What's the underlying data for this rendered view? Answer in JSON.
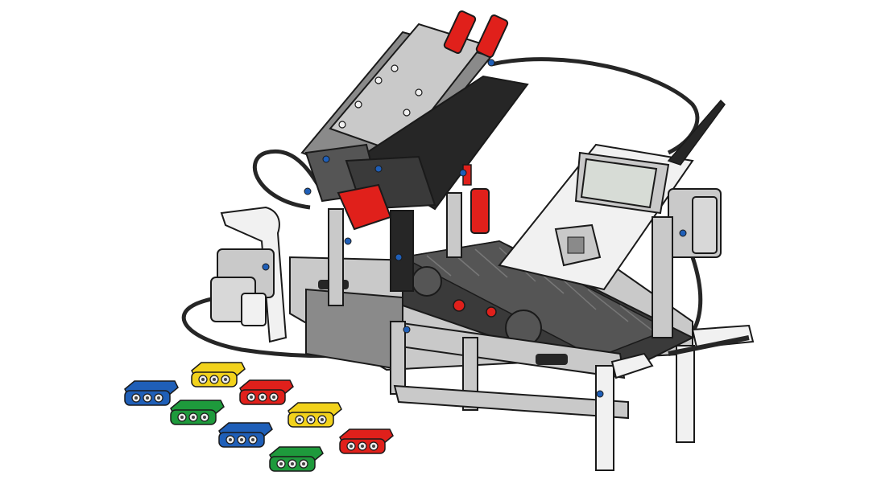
{
  "scene": {
    "subject": "lego-mindstorms-ev3-color-sorter",
    "colors": {
      "background": "#ffffff",
      "technic_gray": "#c9c9c9",
      "technic_dark_gray": "#8a8a8a",
      "black": "#262626",
      "white_part": "#f1f1f1",
      "red": "#e0201b",
      "blue": "#1f5fb8",
      "green": "#1e9a3c",
      "yellow": "#f2d21b",
      "ev3_screen": "#d7dcd6",
      "outline": "#1a1a1a"
    },
    "bricks": [
      {
        "color": "blue"
      },
      {
        "color": "yellow"
      },
      {
        "color": "green"
      },
      {
        "color": "red"
      },
      {
        "color": "blue"
      },
      {
        "color": "yellow"
      },
      {
        "color": "green"
      },
      {
        "color": "red"
      }
    ]
  }
}
